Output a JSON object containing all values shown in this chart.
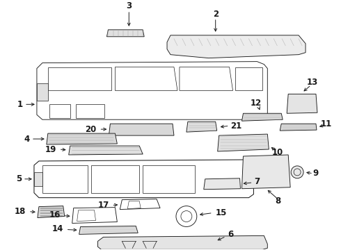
{
  "bg_color": "#ffffff",
  "line_color": "#1a1a1a",
  "fig_width": 4.9,
  "fig_height": 3.6,
  "dpi": 100,
  "label_fontsize": 8.5,
  "arrow_lw": 0.7,
  "part_lw": 0.65
}
